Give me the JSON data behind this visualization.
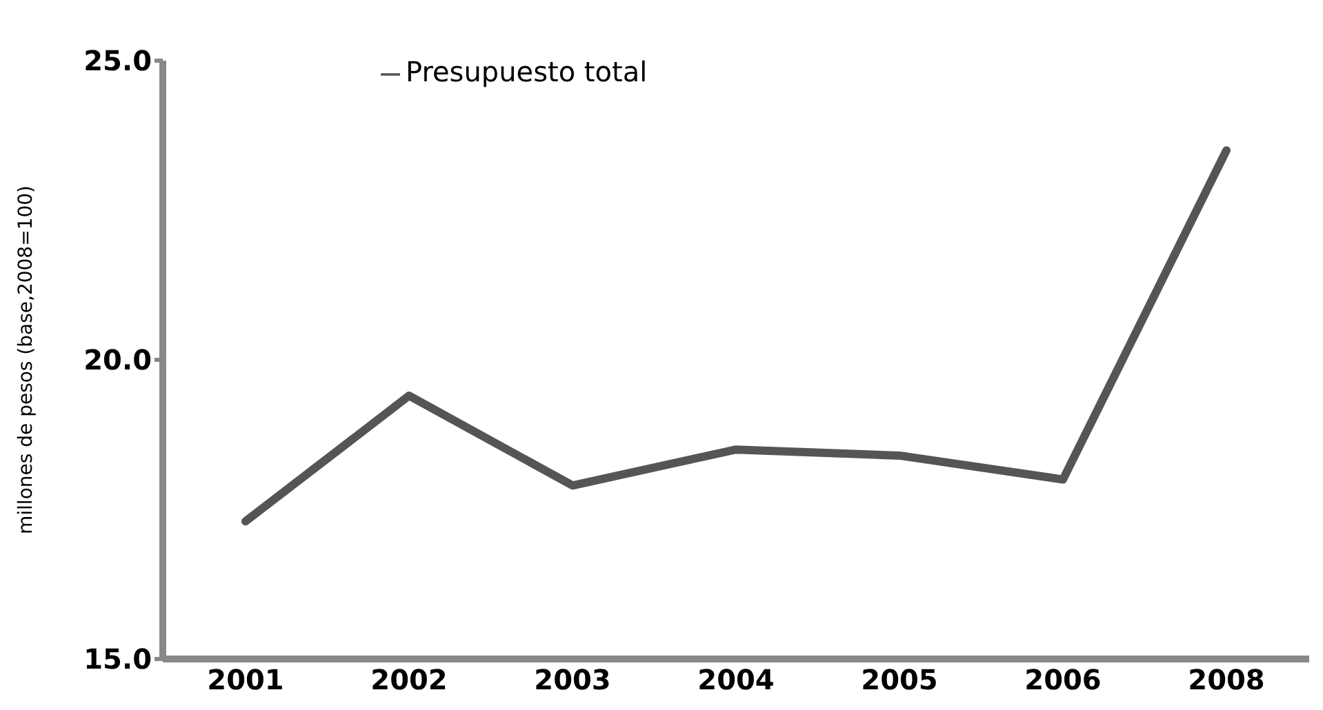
{
  "chart_data": {
    "type": "line",
    "ylabel": "millones de pesos (base,2008=100)",
    "categories": [
      "2001",
      "2002",
      "2003",
      "2004",
      "2005",
      "2006",
      "2008"
    ],
    "series": [
      {
        "name": "Presupuesto total",
        "color": "#555555",
        "values": [
          17.3,
          19.4,
          17.9,
          18.5,
          18.4,
          18.0,
          23.5
        ]
      }
    ],
    "ylim": [
      15,
      25
    ],
    "yticks": [
      {
        "value": 15,
        "label": "15.0"
      },
      {
        "value": 20,
        "label": "20.0"
      },
      {
        "value": 25,
        "label": "25.0"
      }
    ],
    "legend": "top left",
    "marker": "none",
    "line_style": "solid",
    "grid": false
  }
}
